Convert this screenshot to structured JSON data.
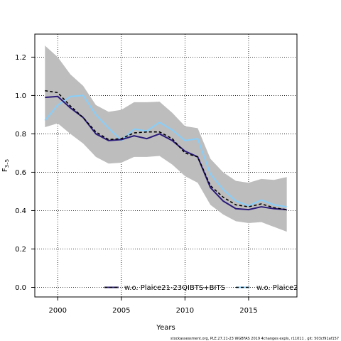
{
  "chart_data": {
    "type": "line",
    "xlabel": "Years",
    "ylabel": "F",
    "ylabel_sub": "3–5",
    "xlim": [
      1998.2,
      2018.8
    ],
    "ylim": [
      -0.05,
      1.32
    ],
    "x_ticks": [
      2000,
      2005,
      2010,
      2015
    ],
    "y_ticks": [
      0.0,
      0.2,
      0.4,
      0.6,
      0.8,
      1.0,
      1.2
    ],
    "grid": true,
    "x": [
      1999,
      2000,
      2001,
      2002,
      2003,
      2004,
      2005,
      2006,
      2007,
      2008,
      2009,
      2010,
      2011,
      2012,
      2013,
      2014,
      2015,
      2016,
      2017,
      2018
    ],
    "band": {
      "upper": [
        1.26,
        1.2,
        1.11,
        1.05,
        0.95,
        0.915,
        0.925,
        0.965,
        0.965,
        0.968,
        0.91,
        0.84,
        0.83,
        0.67,
        0.6,
        0.555,
        0.545,
        0.565,
        0.56,
        0.575
      ],
      "lower": [
        0.835,
        0.855,
        0.8,
        0.75,
        0.68,
        0.645,
        0.65,
        0.68,
        0.68,
        0.685,
        0.64,
        0.58,
        0.545,
        0.43,
        0.38,
        0.345,
        0.335,
        0.34,
        0.315,
        0.29
      ],
      "color": "#bdbdbd"
    },
    "series": [
      {
        "name": "w.o. Plaice21-23QIBTS+BITS",
        "color": "#2b1a7a",
        "style": "solid",
        "values": [
          0.99,
          0.995,
          0.935,
          0.885,
          0.8,
          0.765,
          0.77,
          0.79,
          0.775,
          0.8,
          0.765,
          0.71,
          0.68,
          0.52,
          0.45,
          0.41,
          0.405,
          0.42,
          0.41,
          0.405
        ]
      },
      {
        "name": "w.o. Plaice2",
        "color": "#87cefa",
        "style": "solid",
        "values": [
          0.87,
          0.95,
          0.995,
          1.0,
          0.9,
          0.83,
          0.765,
          0.825,
          0.815,
          0.86,
          0.82,
          0.765,
          0.775,
          0.59,
          0.51,
          0.45,
          0.425,
          0.455,
          0.43,
          0.42
        ]
      },
      {
        "name": "",
        "color": "#000000",
        "style": "dashed",
        "values": [
          1.025,
          1.015,
          0.945,
          0.885,
          0.81,
          0.77,
          0.775,
          0.805,
          0.81,
          0.81,
          0.775,
          0.7,
          0.68,
          0.53,
          0.47,
          0.43,
          0.42,
          0.435,
          0.415,
          0.405
        ]
      }
    ]
  },
  "footer": "stockassessment.org, PLE.27.21-23 WGBFAS 2019 4changes expls, r11011 , git: 503cf91af157"
}
